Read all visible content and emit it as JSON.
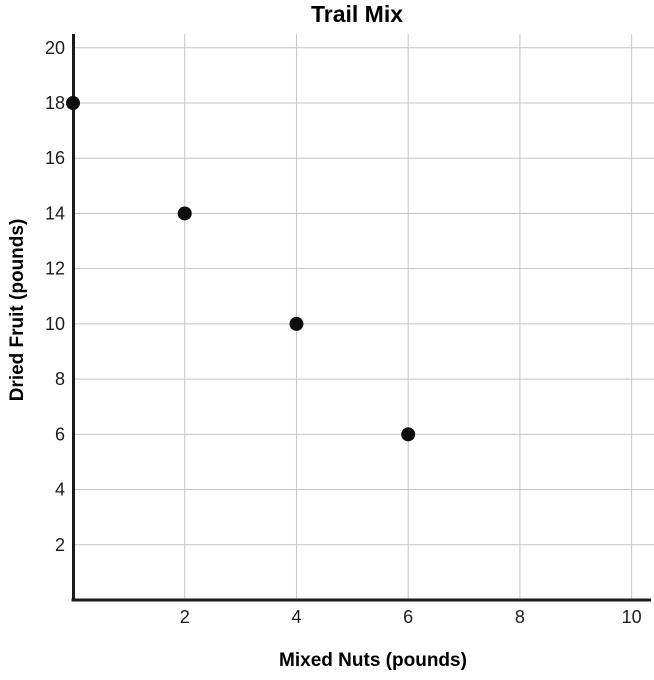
{
  "chart_data": {
    "type": "scatter",
    "title": "Trail Mix",
    "xlabel": "Mixed Nuts (pounds)",
    "ylabel": "Dried Fruit (pounds)",
    "points": [
      {
        "x": 0,
        "y": 18
      },
      {
        "x": 2,
        "y": 14
      },
      {
        "x": 4,
        "y": 10
      },
      {
        "x": 6,
        "y": 6
      }
    ],
    "x_ticks": [
      2,
      4,
      6,
      8,
      10
    ],
    "y_ticks": [
      2,
      4,
      6,
      8,
      10,
      12,
      14,
      16,
      18,
      20
    ],
    "xlim": [
      0,
      10.4
    ],
    "ylim": [
      0,
      20.5
    ],
    "grid": true,
    "legend": "none",
    "marker_radius_px": 7,
    "colors": {
      "point": "#0d0d0d",
      "axis": "#1c1c1c",
      "grid": "#c5c5c5",
      "text": "#1c1c1c",
      "background": "#ffffff"
    }
  }
}
